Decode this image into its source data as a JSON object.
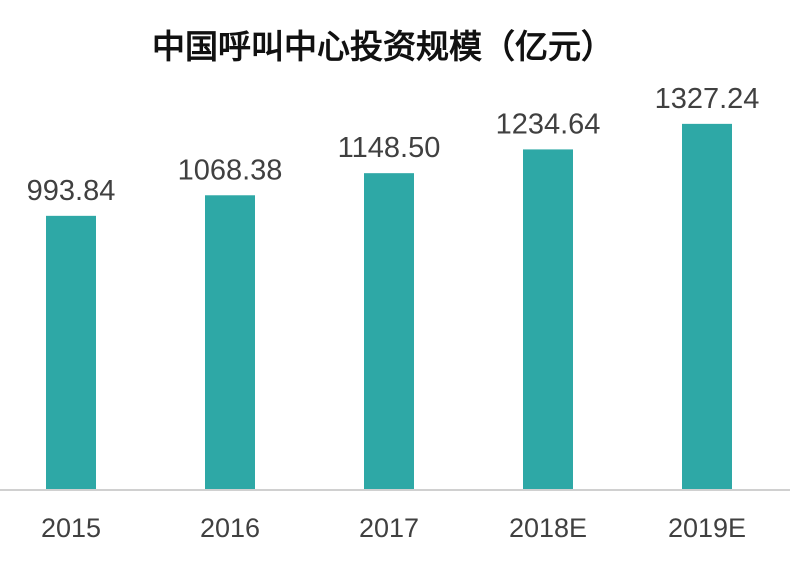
{
  "chart_data": {
    "type": "bar",
    "title": "中国呼叫中心投资规模（亿元）",
    "categories": [
      "2015",
      "2016",
      "2017",
      "2018E",
      "2019E"
    ],
    "values": [
      993.84,
      1068.38,
      1148.5,
      1234.64,
      1327.24
    ],
    "value_labels": [
      "993.84",
      "1068.38",
      "1148.50",
      "1234.64",
      "1327.24"
    ],
    "xlabel": "",
    "ylabel": "",
    "ylim": [
      0,
      1450
    ],
    "grid": false,
    "legend": "none",
    "colors": {
      "bar": "#2EA8A6",
      "axis": "#D0D0D0",
      "text": "#404040",
      "title": "#111111"
    }
  }
}
